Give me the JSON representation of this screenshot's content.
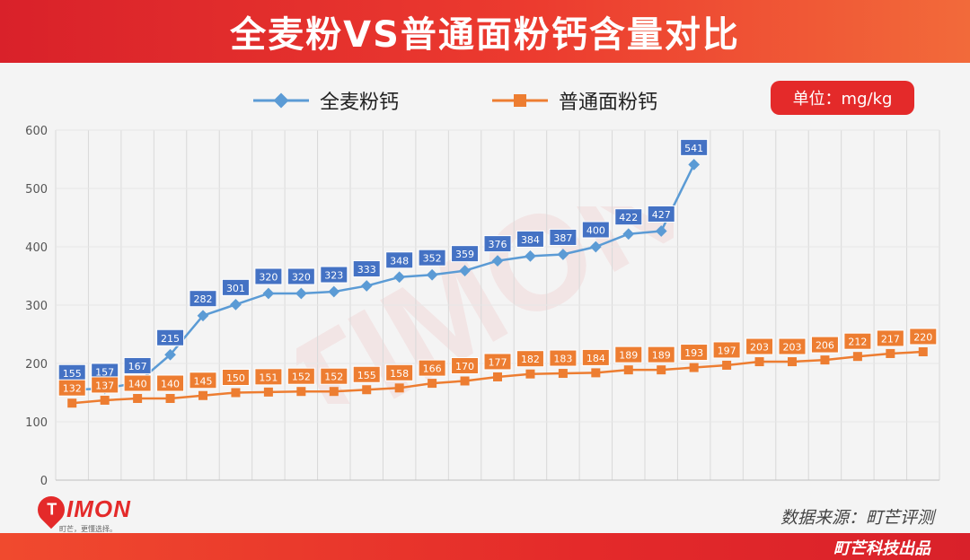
{
  "title": "全麦粉VS普通面粉钙含量对比",
  "unit": "单位：mg/kg",
  "source": "数据来源：町芒评测",
  "footer": "町芒科技出品",
  "logo": {
    "text": "IMON",
    "initial": "T",
    "slogan": "町芒，更懂选择。"
  },
  "watermark": {
    "text": "TIMON",
    "slogan": "町芒，更懂选择。"
  },
  "colors": {
    "whole_wheat": "#5b9bd5",
    "regular": "#ed7d31",
    "label_blue": "#4472c4",
    "accent": "#e42a2a"
  },
  "chart_data": {
    "type": "line",
    "ylim": [
      0,
      600
    ],
    "yticks": [
      "0",
      "100",
      "200",
      "300",
      "400",
      "500",
      "600"
    ],
    "grid": true,
    "legend_position": "top",
    "series": [
      {
        "name": "全麦粉钙",
        "values": [
          155,
          157,
          167,
          215,
          282,
          301,
          320,
          320,
          323,
          333,
          348,
          352,
          359,
          376,
          384,
          387,
          400,
          422,
          427,
          541
        ]
      },
      {
        "name": "普通面粉钙",
        "values": [
          132,
          137,
          140,
          140,
          145,
          150,
          151,
          152,
          152,
          155,
          158,
          166,
          170,
          177,
          182,
          183,
          184,
          189,
          189,
          193,
          197,
          203,
          203,
          206,
          212,
          217,
          220
        ]
      }
    ]
  }
}
